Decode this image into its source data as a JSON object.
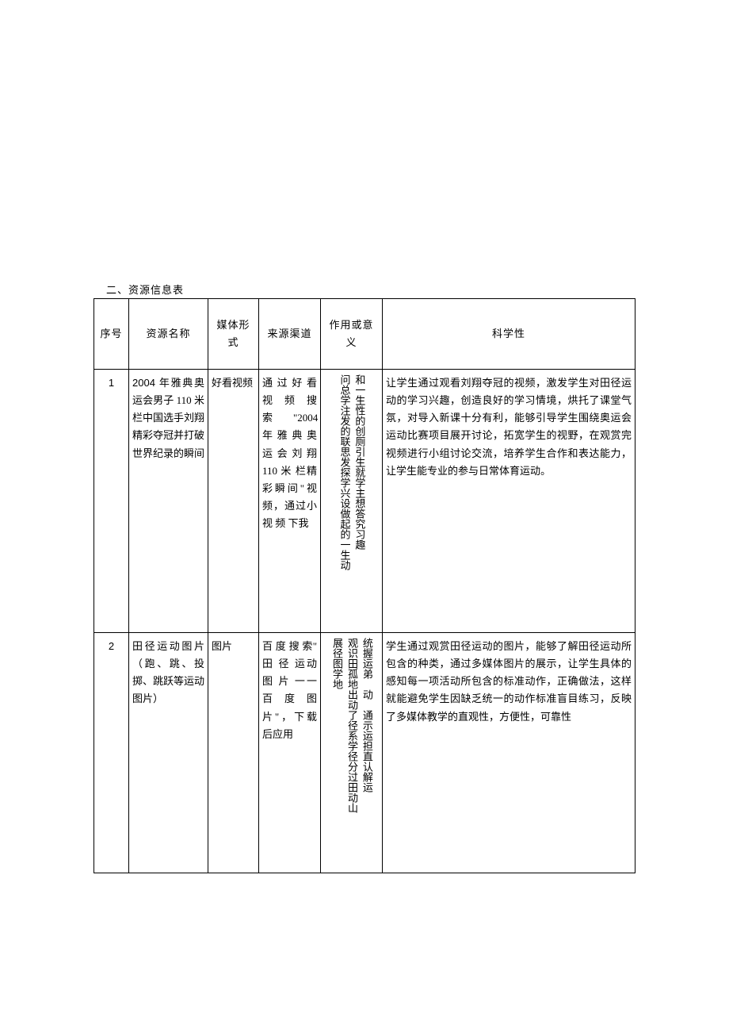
{
  "section_title": "二、资源信息表",
  "columns": {
    "seq": "序号",
    "name": "资源名称",
    "media": "媒体形式",
    "src": "来源渠道",
    "role": "作用或意义",
    "sci": "科学性"
  },
  "rows": [
    {
      "seq": "1",
      "name_prefix_latin": "2004",
      "name_rest": " 年雅典奥运会男子 110 米栏中国选手刘翔精彩夺冠并打破世界纪录的瞬间",
      "media": "好看视频",
      "src": "通 过 好 看视频搜索　　\"2004年 雅 典 奥运 会 刘 翔110 米 栏精彩瞬间\"视频，通过小 视 频 下我",
      "role_cols": [
        "和一生性的创厕引生就学主想答究习趣",
        "问总学注发的联思发探学兴设做起的一生动"
      ],
      "sci": "让学生通过观看刘翔夺冠的视频，激发学生对田径运动的学习兴趣，创造良好的学习情境，烘托了课堂气氛，对导入新课十分有利，能够引导学生围绕奥运会运动比赛项目展开讨论，拓宽学生的视野，在观赏完视频进行小组讨论交流，培养学生合作和表达能力，让学生能专业的参与日常体育运动。"
    },
    {
      "seq": "2",
      "name": "田径运动图片（跑、跳、投掷、跳跃等运动图片）",
      "media": "图片",
      "src": "百 度 搜 索\" 田 径 运动 图 片 一一 百 度 图片\"，下载后应用",
      "role_cols": [
        "统握运弟　动　通示运担直认解运",
        "观识田孤地出动了径系学径分过田动山",
        "展径图学地"
      ],
      "sci": "学生通过观赏田径运动的图片，能够了解田径运动所包含的种类，通过多媒体图片的展示，让学生具体的感知每一项活动所包含的标准动作，正确做法，这样就能避免学生因缺乏统一的动作标准盲目练习，反映了多媒体教学的直观性，方便性，可靠性"
    }
  ],
  "row_heights": {
    "r1": "332px",
    "r2": "303px"
  },
  "colors": {
    "border": "#000000",
    "text": "#000000",
    "bg": "#ffffff"
  }
}
